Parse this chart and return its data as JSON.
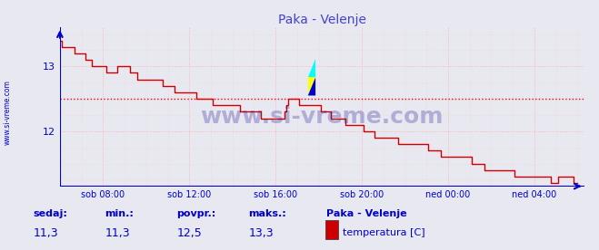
{
  "title": "Paka - Velenje",
  "title_color": "#4444cc",
  "bg_color": "#e8e8f0",
  "plot_bg_color": "#e8e8f0",
  "grid_color_major": "#ffaaaa",
  "grid_color_minor": "#ffcccc",
  "line_color": "#cc0000",
  "avg_line_color": "#ff0000",
  "avg_value": 12.5,
  "x_tick_hours": [
    8,
    12,
    16,
    20,
    24,
    28
  ],
  "x_tick_labels": [
    "sob 08:00",
    "sob 12:00",
    "sob 16:00",
    "sob 20:00",
    "ned 00:00",
    "ned 04:00"
  ],
  "y_ticks": [
    12,
    13
  ],
  "ylim": [
    11.15,
    13.6
  ],
  "xlim": [
    6.0,
    30.3
  ],
  "watermark": "www.si-vreme.com",
  "watermark_color": "#1a1a99",
  "sidebar_text": "www.si-vreme.com",
  "axis_color": "#0000cc",
  "tick_color": "#0000cc",
  "footer_labels": [
    "sedaj:",
    "min.:",
    "povpr.:",
    "maks.:"
  ],
  "footer_values": [
    "11,3",
    "11,3",
    "12,5",
    "13,3"
  ],
  "footer_legend_title": "Paka - Velenje",
  "footer_legend_label": "temperatura [C]",
  "footer_legend_color": "#cc0000",
  "breakpoints": [
    [
      6.0,
      13.35
    ],
    [
      6.1,
      13.3
    ],
    [
      6.5,
      13.3
    ],
    [
      6.7,
      13.2
    ],
    [
      7.0,
      13.2
    ],
    [
      7.2,
      13.1
    ],
    [
      7.5,
      13.05
    ],
    [
      7.8,
      13.0
    ],
    [
      8.0,
      13.0
    ],
    [
      8.3,
      12.9
    ],
    [
      8.5,
      12.9
    ],
    [
      8.8,
      13.0
    ],
    [
      9.0,
      13.0
    ],
    [
      9.2,
      12.95
    ],
    [
      9.5,
      12.85
    ],
    [
      9.8,
      12.8
    ],
    [
      10.0,
      12.8
    ],
    [
      10.3,
      12.75
    ],
    [
      10.7,
      12.75
    ],
    [
      11.0,
      12.7
    ],
    [
      11.3,
      12.65
    ],
    [
      11.5,
      12.65
    ],
    [
      11.8,
      12.6
    ],
    [
      12.0,
      12.6
    ],
    [
      12.3,
      12.55
    ],
    [
      12.5,
      12.5
    ],
    [
      12.8,
      12.5
    ],
    [
      13.0,
      12.45
    ],
    [
      13.3,
      12.45
    ],
    [
      13.6,
      12.4
    ],
    [
      14.0,
      12.4
    ],
    [
      14.3,
      12.35
    ],
    [
      14.6,
      12.3
    ],
    [
      15.0,
      12.3
    ],
    [
      15.3,
      12.25
    ],
    [
      15.6,
      12.25
    ],
    [
      16.0,
      12.2
    ],
    [
      16.3,
      12.2
    ],
    [
      16.6,
      12.5
    ],
    [
      16.8,
      12.5
    ],
    [
      17.0,
      12.45
    ],
    [
      17.3,
      12.45
    ],
    [
      17.5,
      12.4
    ],
    [
      17.8,
      12.4
    ],
    [
      18.0,
      12.35
    ],
    [
      18.3,
      12.3
    ],
    [
      18.5,
      12.25
    ],
    [
      18.8,
      12.2
    ],
    [
      19.0,
      12.2
    ],
    [
      19.2,
      12.15
    ],
    [
      19.5,
      12.1
    ],
    [
      19.8,
      12.1
    ],
    [
      20.0,
      12.05
    ],
    [
      20.3,
      12.0
    ],
    [
      20.5,
      11.95
    ],
    [
      21.0,
      11.95
    ],
    [
      21.3,
      11.9
    ],
    [
      21.6,
      11.85
    ],
    [
      22.0,
      11.85
    ],
    [
      22.3,
      11.8
    ],
    [
      22.6,
      11.75
    ],
    [
      23.0,
      11.75
    ],
    [
      23.3,
      11.7
    ],
    [
      23.6,
      11.65
    ],
    [
      24.0,
      11.65
    ],
    [
      24.3,
      11.6
    ],
    [
      24.6,
      11.55
    ],
    [
      25.0,
      11.55
    ],
    [
      25.3,
      11.5
    ],
    [
      25.6,
      11.45
    ],
    [
      26.0,
      11.45
    ],
    [
      26.3,
      11.4
    ],
    [
      26.6,
      11.4
    ],
    [
      27.0,
      11.35
    ],
    [
      27.3,
      11.35
    ],
    [
      27.6,
      11.3
    ],
    [
      28.0,
      11.3
    ],
    [
      28.3,
      11.3
    ],
    [
      28.7,
      11.25
    ],
    [
      29.0,
      11.25
    ],
    [
      29.3,
      11.3
    ],
    [
      29.5,
      11.3
    ],
    [
      29.8,
      11.25
    ],
    [
      30.0,
      11.2
    ]
  ]
}
